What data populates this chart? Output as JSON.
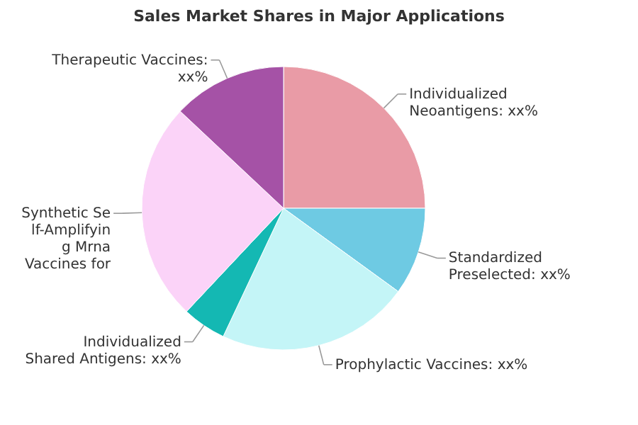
{
  "chart_data": {
    "type": "pie",
    "title": "Sales Market Shares in Major Applications",
    "categories": [
      "Individualized Neoantigens: xx%",
      "Standardized Preselected: xx%",
      "Prophylactic Vaccines: xx%",
      "Individualized Shared Antigens: xx%",
      "Synthetic Self-Amplifying Mrna Vaccines for",
      "Therapeutic Vaccines: xx%"
    ],
    "values": [
      25,
      10,
      22,
      5,
      25,
      13
    ],
    "colors": [
      "#e99ba6",
      "#6ecae3",
      "#c4f5f7",
      "#14b8b3",
      "#fbd3f8",
      "#a552a6"
    ]
  }
}
